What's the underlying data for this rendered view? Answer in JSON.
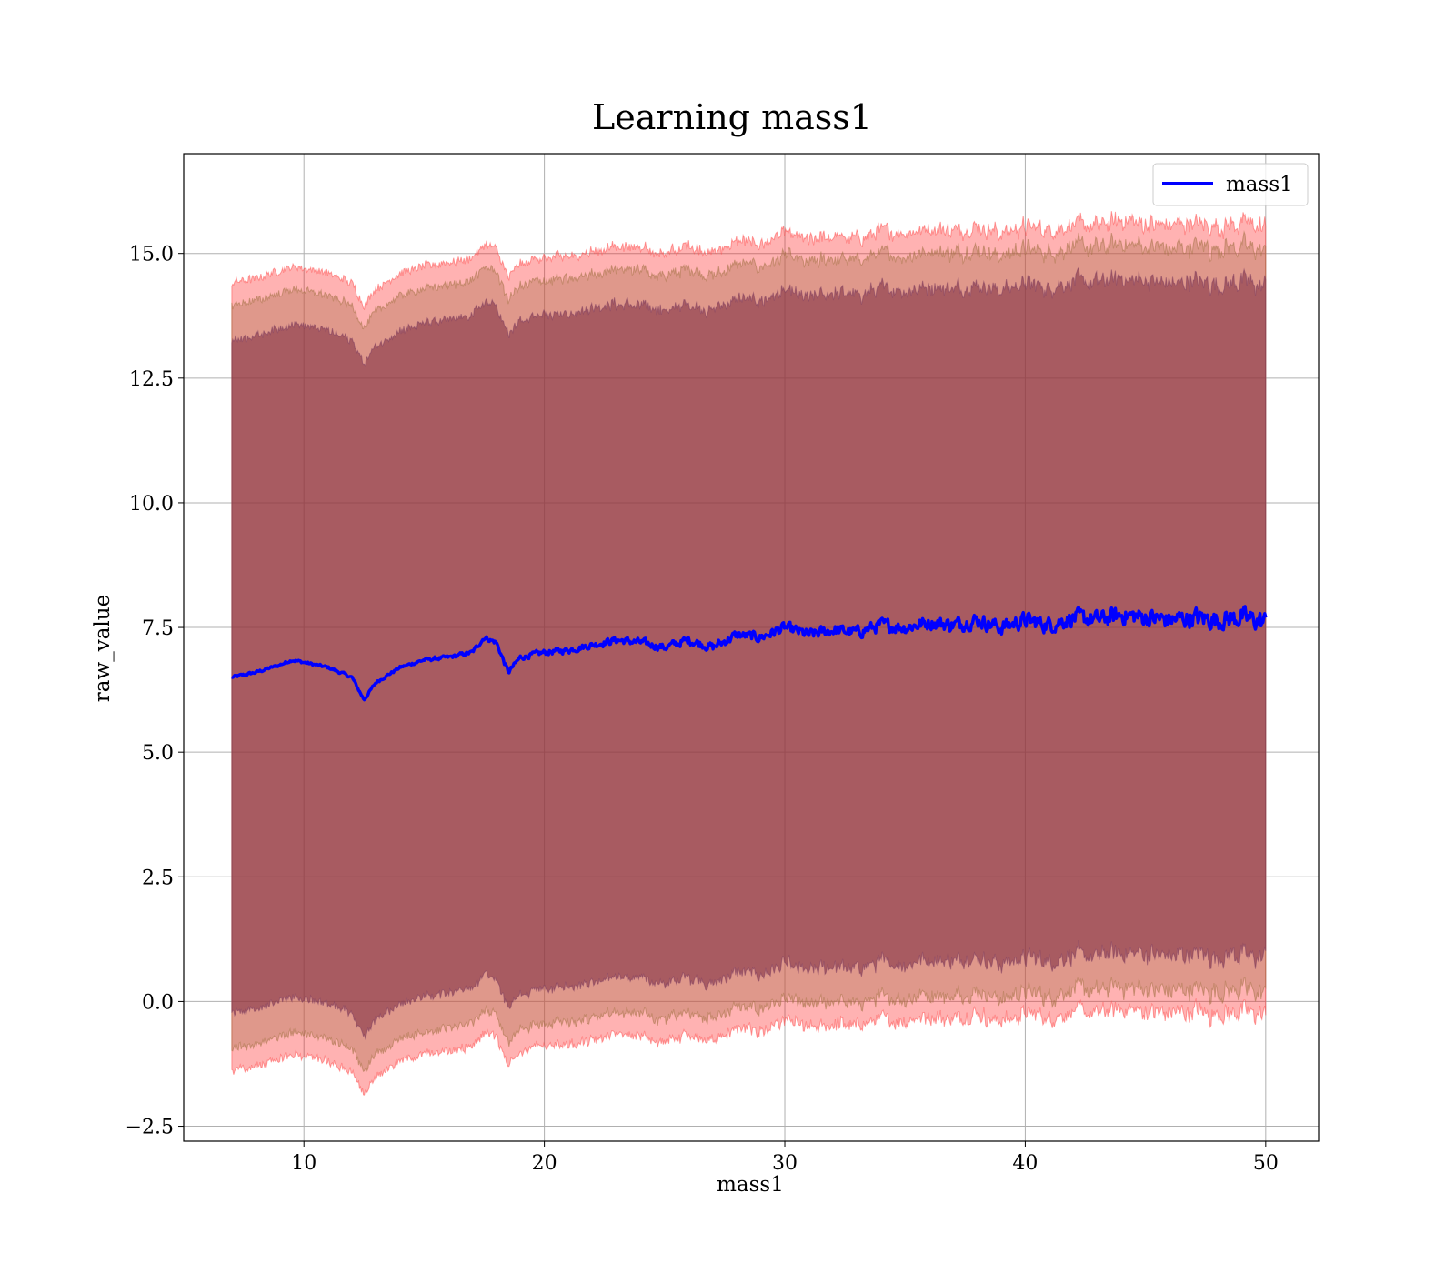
{
  "chart_data": {
    "type": "line",
    "title": "Learning mass1",
    "xlabel": "mass1",
    "ylabel": "raw_value",
    "xlim": [
      5,
      52.2
    ],
    "ylim": [
      -2.8,
      17.0
    ],
    "x_ticks": [
      10,
      20,
      30,
      40,
      50
    ],
    "y_ticks": [
      -2.5,
      0.0,
      2.5,
      5.0,
      7.5,
      10.0,
      12.5,
      15.0
    ],
    "x_tick_labels": [
      "10",
      "20",
      "30",
      "40",
      "50"
    ],
    "y_tick_labels": [
      "−2.5",
      "0.0",
      "2.5",
      "5.0",
      "7.5",
      "10.0",
      "12.5",
      "15.0"
    ],
    "grid": true,
    "legend": {
      "position": "top-right",
      "entries": [
        "mass1"
      ]
    },
    "series": [
      {
        "name": "mass1",
        "color": "#0000ff",
        "x": [
          7,
          8,
          9,
          9.5,
          10,
          11,
          12,
          12.5,
          13,
          14,
          15,
          16,
          17,
          17.5,
          18,
          18.5,
          19,
          20,
          21,
          22,
          23,
          24,
          25,
          26,
          27,
          28,
          29,
          30,
          31,
          32,
          33,
          34,
          35,
          36,
          37,
          38,
          39,
          40,
          41,
          42,
          43,
          44,
          45,
          46,
          47,
          48,
          49,
          50
        ],
        "y": [
          6.5,
          6.6,
          6.75,
          6.85,
          6.8,
          6.7,
          6.5,
          6.05,
          6.4,
          6.7,
          6.85,
          6.9,
          7.0,
          7.3,
          7.2,
          6.6,
          6.9,
          7.0,
          7.05,
          7.15,
          7.25,
          7.2,
          7.1,
          7.25,
          7.1,
          7.35,
          7.3,
          7.5,
          7.35,
          7.45,
          7.4,
          7.55,
          7.5,
          7.6,
          7.55,
          7.65,
          7.5,
          7.65,
          7.55,
          7.7,
          7.65,
          7.75,
          7.7,
          7.65,
          7.7,
          7.65,
          7.7,
          7.6
        ]
      }
    ],
    "bands": [
      {
        "label_color": "#ff0000",
        "upper_offset": 7.9,
        "lower_offset": 7.9
      },
      {
        "label_color": "#ba7a5a",
        "upper_offset": 7.45,
        "lower_offset": 7.45
      },
      {
        "label_color": "#a07078",
        "upper_offset": 6.75,
        "lower_offset": 6.75
      }
    ]
  }
}
